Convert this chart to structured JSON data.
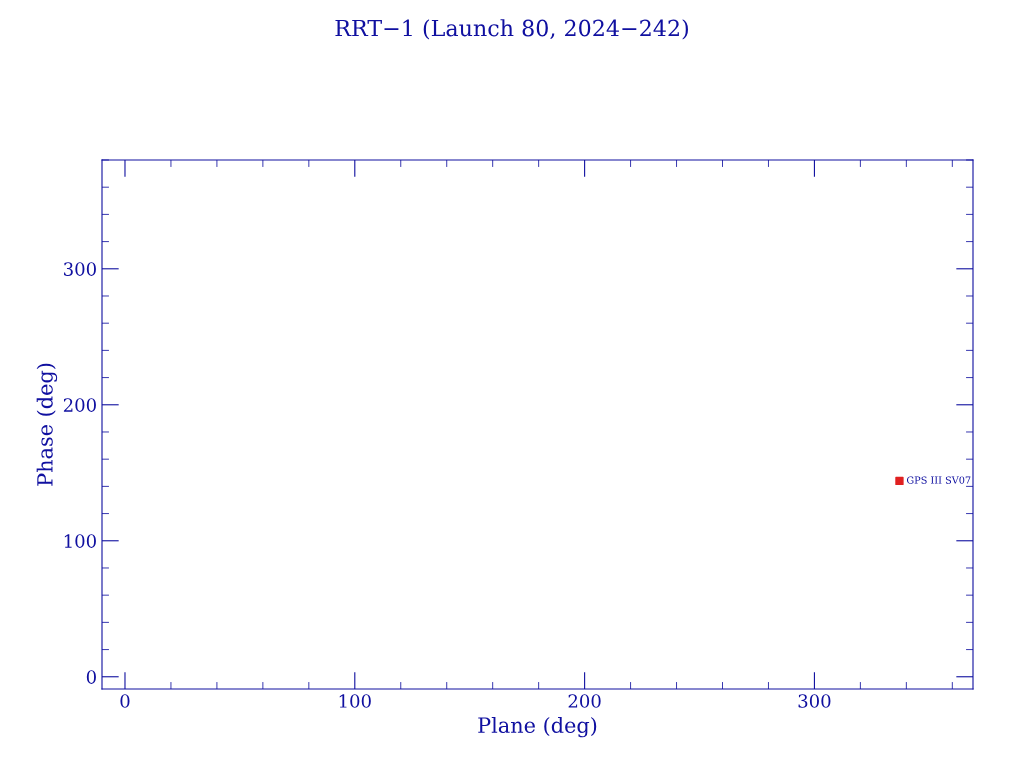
{
  "chart_data": {
    "type": "scatter",
    "title": "RRT−1 (Launch 80, 2024−242)",
    "xlabel": "Plane (deg)",
    "ylabel": "Phase (deg)",
    "x": [
      337
    ],
    "values": [
      144
    ],
    "color": "#e02020",
    "marker": "square",
    "annotations": [
      {
        "text": "GPS III SV07",
        "x": 337,
        "y": 144
      }
    ],
    "xlim": [
      -10,
      369
    ],
    "ylim": [
      -9,
      380
    ],
    "xticks": [
      0,
      100,
      200,
      300
    ],
    "yticks": [
      0,
      100,
      200,
      300
    ],
    "grid": false,
    "legend": false
  }
}
